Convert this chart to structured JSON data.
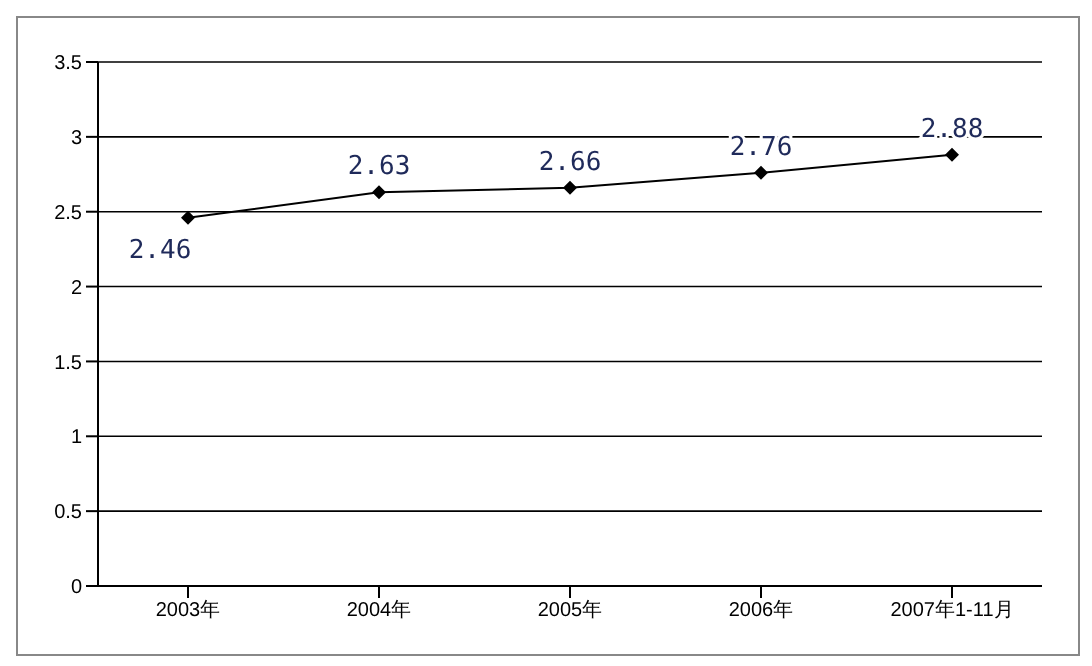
{
  "chart_data": {
    "type": "line",
    "categories": [
      "2003年",
      "2004年",
      "2005年",
      "2006年",
      "2007年1-11月"
    ],
    "series": [
      {
        "color": "#000000",
        "values": [
          2.46,
          2.63,
          2.66,
          2.76,
          2.88
        ]
      }
    ],
    "ylim": [
      0,
      3.5
    ],
    "yticks": [
      0,
      0.5,
      1,
      1.5,
      2,
      2.5,
      3,
      3.5
    ],
    "grid": "y",
    "marker": "diamond",
    "line_style": "solid",
    "data_labels": true
  }
}
